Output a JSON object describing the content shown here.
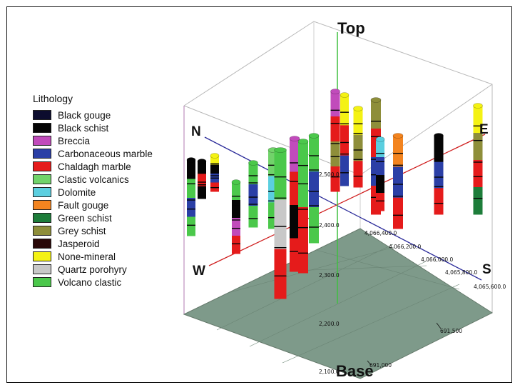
{
  "legend": {
    "title": "Lithology",
    "items": [
      {
        "label": "Black gouge",
        "color": "#0c0c2e"
      },
      {
        "label": "Black schist",
        "color": "#050505"
      },
      {
        "label": "Breccia",
        "color": "#c14bbb"
      },
      {
        "label": "Carbonaceous marble",
        "color": "#2b3fa6"
      },
      {
        "label": "Chaldagh marble",
        "color": "#e51b1b"
      },
      {
        "label": "Clastic volcanics",
        "color": "#71d36a"
      },
      {
        "label": "Dolomite",
        "color": "#5bcfe0"
      },
      {
        "label": "Fault gouge",
        "color": "#f3841f"
      },
      {
        "label": "Green schist",
        "color": "#1d7d3a"
      },
      {
        "label": "Grey schist",
        "color": "#8e8e3a"
      },
      {
        "label": "Jasperoid",
        "color": "#2a0808"
      },
      {
        "label": "None-mineral",
        "color": "#f4f214"
      },
      {
        "label": "Quartz porohyry",
        "color": "#c8c8c8"
      },
      {
        "label": "Volcano clastic",
        "color": "#4bc84b"
      }
    ]
  },
  "labels": {
    "top": "Top",
    "base": "Base",
    "north": "N",
    "south": "S",
    "east": "E",
    "west": "W"
  },
  "elevation_ticks": [
    "2,500.0",
    "2,400.0",
    "2,300.0",
    "2,200.0",
    "2,100.0"
  ],
  "northing_ticks": [
    "4,066,400.0",
    "4,066,200.0",
    "4,066,000.0",
    "4,065,800.0",
    "4,065,600.0"
  ],
  "easting_ticks": [
    "691,500",
    "691,000"
  ],
  "colors": {
    "floor": "#7e9a8a",
    "ns_axis": "#2c2c9a",
    "ew_axis": "#d02020",
    "vertical_axis": "#3fbf3f",
    "box_edge": "#c080c0"
  }
}
